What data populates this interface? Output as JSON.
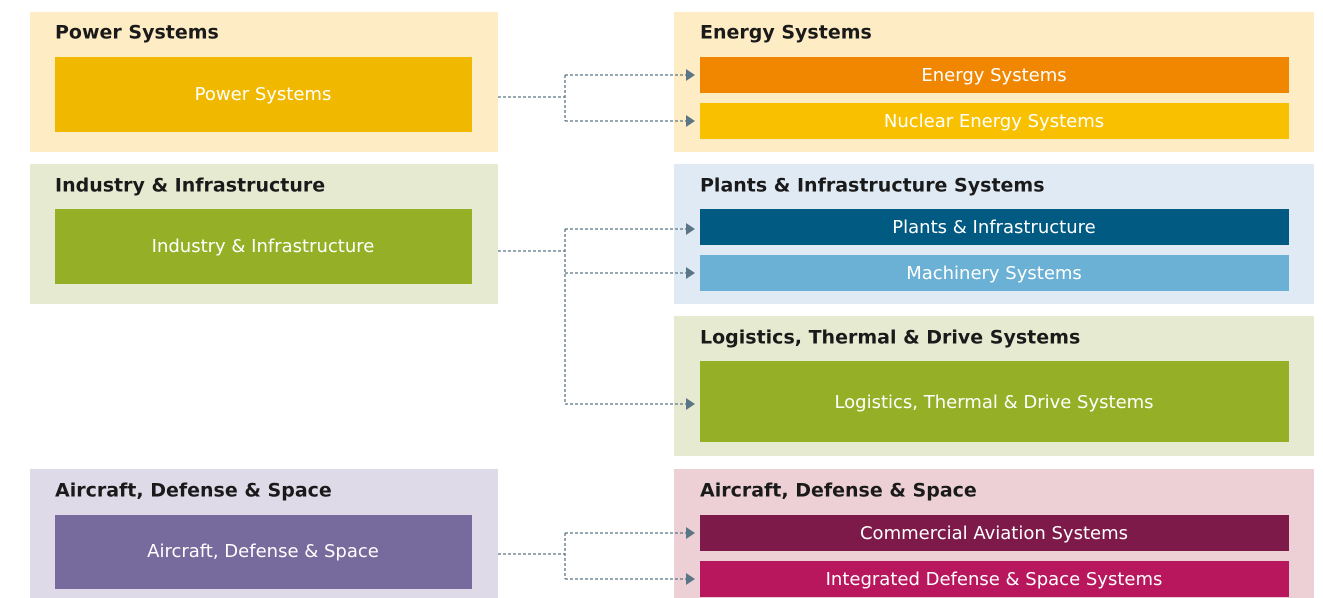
{
  "left": [
    {
      "title": "Power Systems",
      "box": "Power Systems"
    },
    {
      "title": "Industry & Infrastructure",
      "box": "Industry & Infrastructure"
    },
    {
      "title": "Aircraft, Defense & Space",
      "box": "Aircraft, Defense & Space"
    }
  ],
  "right": [
    {
      "title": "Energy Systems",
      "items": [
        "Energy Systems",
        "Nuclear Energy Systems"
      ]
    },
    {
      "title": "Plants & Infrastructure Systems",
      "items": [
        "Plants & Infrastructure",
        "Machinery Systems"
      ]
    },
    {
      "title": "Logistics, Thermal & Drive Systems",
      "items": [
        "Logistics, Thermal & Drive Systems"
      ]
    },
    {
      "title": "Aircraft, Defense & Space",
      "items": [
        "Commercial Aviation Systems",
        "Integrated Defense & Space Systems"
      ]
    }
  ]
}
